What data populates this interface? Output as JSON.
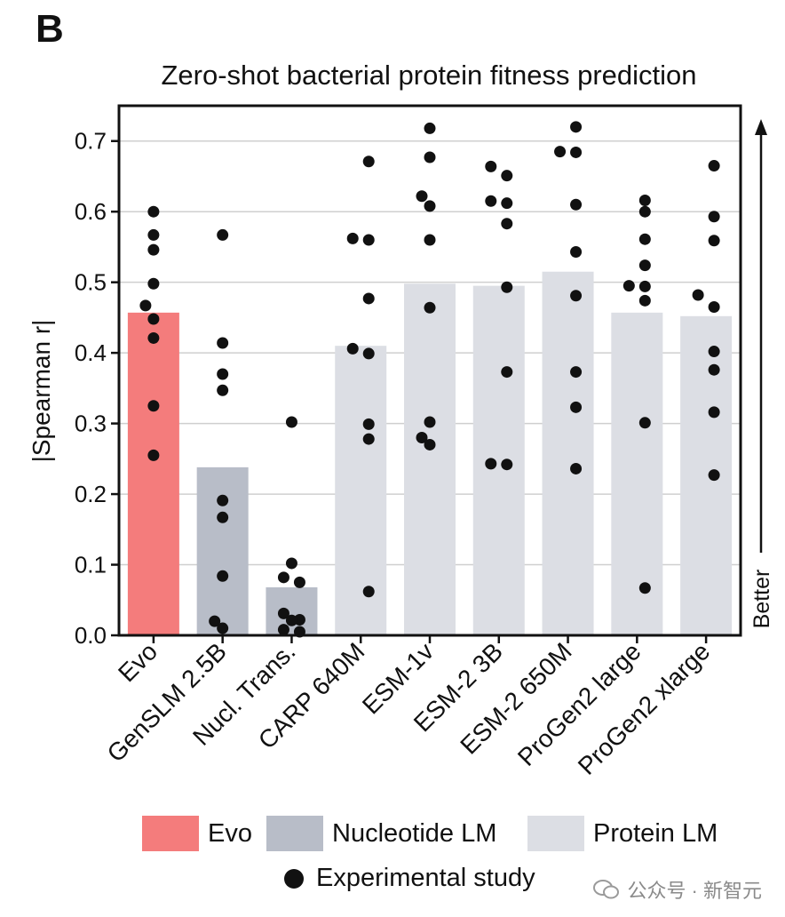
{
  "panel_letter": "B",
  "legend": {
    "items": [
      {
        "label": "Evo",
        "color": "#f47c7c"
      },
      {
        "label": "Nucleotide LM",
        "color": "#b8bdc8"
      },
      {
        "label": "Protein LM",
        "color": "#dcdee4"
      }
    ],
    "dot_label": "Experimental study"
  },
  "watermark": "公众号 · 新智元",
  "chart_data": {
    "type": "bar",
    "title": "Zero-shot bacterial protein fitness prediction",
    "ylabel": "|Spearman r|",
    "side_label": "Better",
    "ylim": [
      0,
      0.75
    ],
    "yticks": [
      "0.0",
      "0.1",
      "0.2",
      "0.3",
      "0.4",
      "0.5",
      "0.6",
      "0.7"
    ],
    "grid": true,
    "categories": [
      "Evo",
      "GenSLM 2.5B",
      "Nucl. Trans.",
      "CARP 640M",
      "ESM-1v",
      "ESM-2 3B",
      "ESM-2 650M",
      "ProGen2 large",
      "ProGen2 xlarge"
    ],
    "groups": [
      "Evo",
      "Nucleotide LM",
      "Nucleotide LM",
      "Protein LM",
      "Protein LM",
      "Protein LM",
      "Protein LM",
      "Protein LM",
      "Protein LM"
    ],
    "values": [
      0.457,
      0.238,
      0.068,
      0.41,
      0.498,
      0.495,
      0.515,
      0.457,
      0.452
    ],
    "points": [
      [
        [
          0.6,
          0
        ],
        [
          0.567,
          0
        ],
        [
          0.546,
          0
        ],
        [
          0.498,
          0
        ],
        [
          0.467,
          -1
        ],
        [
          0.448,
          0
        ],
        [
          0.421,
          0
        ],
        [
          0.325,
          0
        ],
        [
          0.255,
          0
        ]
      ],
      [
        [
          0.567,
          0
        ],
        [
          0.414,
          0
        ],
        [
          0.37,
          0
        ],
        [
          0.347,
          0
        ],
        [
          0.191,
          0
        ],
        [
          0.167,
          0
        ],
        [
          0.084,
          0
        ],
        [
          0.02,
          -1
        ],
        [
          0.01,
          0
        ]
      ],
      [
        [
          0.302,
          0
        ],
        [
          0.102,
          0
        ],
        [
          0.082,
          -1
        ],
        [
          0.075,
          1
        ],
        [
          0.031,
          -1
        ],
        [
          0.022,
          1
        ],
        [
          0.021,
          0
        ],
        [
          0.008,
          -1
        ],
        [
          0.005,
          1
        ]
      ],
      [
        [
          0.671,
          1
        ],
        [
          0.562,
          -1
        ],
        [
          0.56,
          1
        ],
        [
          0.477,
          1
        ],
        [
          0.406,
          -1
        ],
        [
          0.399,
          1
        ],
        [
          0.299,
          1
        ],
        [
          0.278,
          1
        ],
        [
          0.062,
          1
        ]
      ],
      [
        [
          0.718,
          0
        ],
        [
          0.677,
          0
        ],
        [
          0.622,
          -1
        ],
        [
          0.608,
          0
        ],
        [
          0.56,
          0
        ],
        [
          0.464,
          0
        ],
        [
          0.302,
          0
        ],
        [
          0.28,
          -1
        ],
        [
          0.27,
          0
        ]
      ],
      [
        [
          0.664,
          -1
        ],
        [
          0.651,
          1
        ],
        [
          0.615,
          -1
        ],
        [
          0.612,
          1
        ],
        [
          0.583,
          1
        ],
        [
          0.493,
          1
        ],
        [
          0.373,
          1
        ],
        [
          0.243,
          -1
        ],
        [
          0.242,
          1
        ]
      ],
      [
        [
          0.72,
          1
        ],
        [
          0.685,
          -1
        ],
        [
          0.684,
          1
        ],
        [
          0.61,
          1
        ],
        [
          0.543,
          1
        ],
        [
          0.481,
          1
        ],
        [
          0.373,
          1
        ],
        [
          0.323,
          1
        ],
        [
          0.236,
          1
        ]
      ],
      [
        [
          0.616,
          1
        ],
        [
          0.6,
          1
        ],
        [
          0.561,
          1
        ],
        [
          0.524,
          1
        ],
        [
          0.495,
          -1
        ],
        [
          0.494,
          1
        ],
        [
          0.474,
          1
        ],
        [
          0.301,
          1
        ],
        [
          0.067,
          1
        ]
      ],
      [
        [
          0.665,
          1
        ],
        [
          0.593,
          1
        ],
        [
          0.559,
          1
        ],
        [
          0.482,
          -1
        ],
        [
          0.465,
          1
        ],
        [
          0.402,
          1
        ],
        [
          0.376,
          1
        ],
        [
          0.316,
          1
        ],
        [
          0.227,
          1
        ]
      ]
    ]
  }
}
